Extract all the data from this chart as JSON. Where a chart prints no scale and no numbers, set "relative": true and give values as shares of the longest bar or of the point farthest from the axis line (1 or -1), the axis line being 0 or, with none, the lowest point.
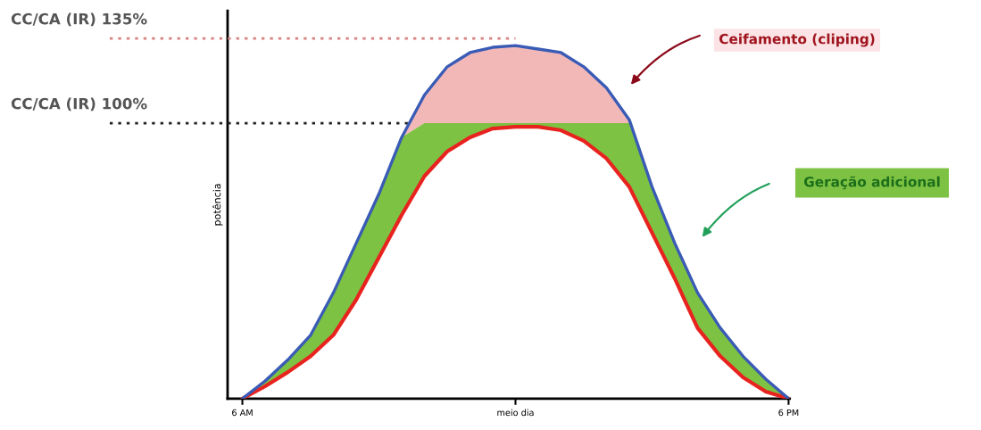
{
  "chart_data": {
    "type": "line",
    "relative": true,
    "ylabel": "potência",
    "categories": [
      "6 AM",
      null,
      null,
      null,
      null,
      null,
      null,
      null,
      null,
      null,
      null,
      null,
      "meio dia",
      null,
      null,
      null,
      null,
      null,
      null,
      null,
      null,
      null,
      null,
      null,
      "6 PM"
    ],
    "series": [
      {
        "color": "#3a5bb5",
        "values": [
          0,
          0.05,
          0.11,
          0.18,
          0.3,
          0.44,
          0.58,
          0.74,
          0.86,
          0.94,
          0.98,
          0.995,
          1.0,
          0.99,
          0.98,
          0.94,
          0.88,
          0.79,
          0.6,
          0.44,
          0.3,
          0.2,
          0.12,
          0.055,
          0
        ],
        "lower": [
          0,
          0.05,
          0.11,
          0.18,
          0.3,
          0.44,
          0.58,
          0.74,
          0.78,
          0.78,
          0.78,
          0.78,
          0.78,
          0.78,
          0.78,
          0.78,
          0.78,
          0.78,
          0.6,
          0.44,
          0.3,
          0.2,
          0.12,
          0.055,
          0
        ],
        "upper": [
          0,
          0.05,
          0.11,
          0.18,
          0.3,
          0.44,
          0.58,
          0.74,
          0.86,
          0.94,
          0.98,
          0.995,
          1.0,
          0.99,
          0.98,
          0.94,
          0.88,
          0.79,
          0.6,
          0.44,
          0.3,
          0.2,
          0.12,
          0.055,
          0
        ]
      },
      {
        "color": "#e8231f",
        "values": [
          0,
          0.035,
          0.075,
          0.12,
          0.18,
          0.28,
          0.4,
          0.52,
          0.63,
          0.7,
          0.74,
          0.765,
          0.77,
          0.77,
          0.76,
          0.73,
          0.68,
          0.6,
          0.47,
          0.34,
          0.2,
          0.12,
          0.06,
          0.02,
          0
        ],
        "lower": [
          0,
          0.035,
          0.075,
          0.12,
          0.18,
          0.28,
          0.4,
          0.52,
          0.63,
          0.7,
          0.74,
          0.765,
          0.77,
          0.77,
          0.76,
          0.73,
          0.68,
          0.6,
          0.47,
          0.34,
          0.2,
          0.12,
          0.06,
          0.02,
          0
        ],
        "upper": [
          0,
          0.05,
          0.11,
          0.18,
          0.3,
          0.44,
          0.58,
          0.74,
          0.78,
          0.78,
          0.78,
          0.78,
          0.78,
          0.78,
          0.78,
          0.78,
          0.78,
          0.78,
          0.6,
          0.44,
          0.3,
          0.2,
          0.12,
          0.055,
          0
        ]
      }
    ],
    "ref_lines": [
      {
        "axis": "y",
        "value": 1.02,
        "label": "CC/CA (IR) 135%",
        "color": "#d98080",
        "line_style": "dotted"
      },
      {
        "axis": "y",
        "value": 0.78,
        "label": "CC/CA (IR) 100%",
        "color": "#222222",
        "line_style": "dotted"
      }
    ],
    "annotations": [
      "Ceifamento (cliping)",
      "Geração adicional"
    ],
    "grid": false,
    "legend": false
  }
}
